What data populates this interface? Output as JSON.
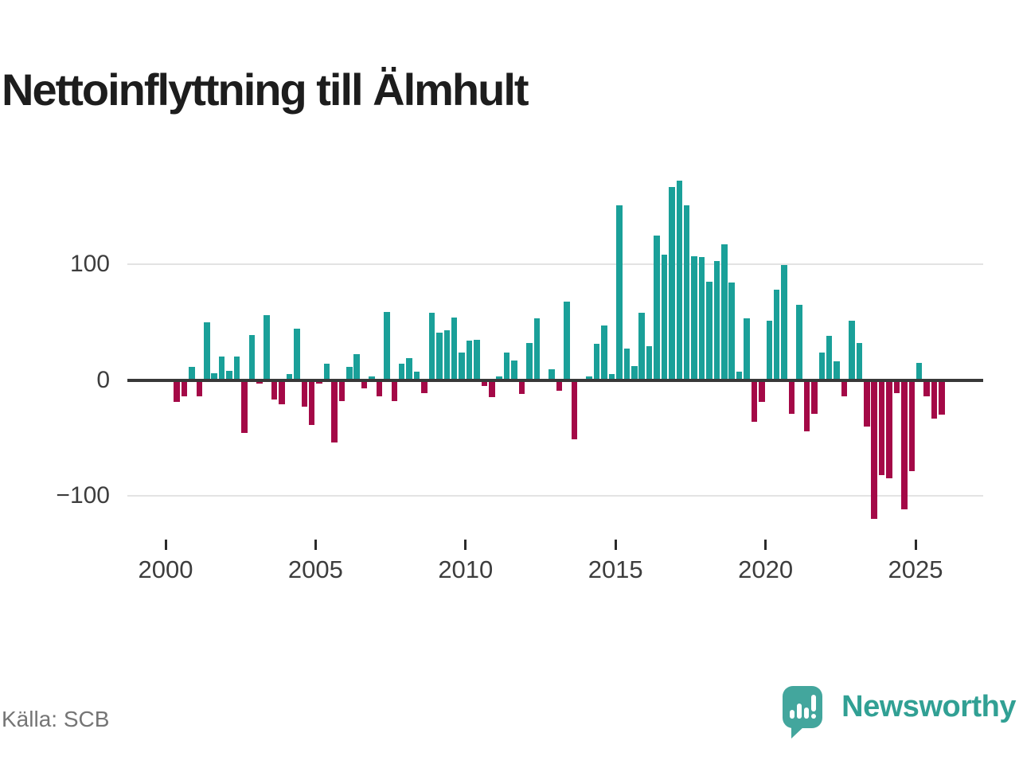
{
  "title": "Nettoinflyttning till Älmhult",
  "source_text": "Källa: SCB",
  "branding": {
    "logo_text": "Newsworthy",
    "logo_icon": "newsworthy-speech-bubble-chart-icon"
  },
  "colors": {
    "positive_bar": "#1aa099",
    "negative_bar": "#a40947",
    "zero_axis": "#383838",
    "gridline": "#e3e3e3",
    "tick_mark": "#2b2b2b",
    "tick_label": "#3d3d3d",
    "title_text": "#1d1d1d",
    "source_text": "#757575",
    "brand_teal": "#43a69d",
    "wordmark_teal": "#31a094"
  },
  "chart_data": {
    "type": "bar",
    "title": "Nettoinflyttning till Älmhult",
    "xlabel": "",
    "ylabel": "",
    "legend": "none",
    "grid": "horizontal",
    "ylim": [
      -130,
      185
    ],
    "y_ticks": [
      {
        "value": 100,
        "label": "100"
      },
      {
        "value": 0,
        "label": "0"
      },
      {
        "value": -100,
        "label": "−100"
      }
    ],
    "x_ticks": [
      {
        "year": 2000,
        "label": "2000"
      },
      {
        "year": 2005,
        "label": "2005"
      },
      {
        "year": 2010,
        "label": "2010"
      },
      {
        "year": 2015,
        "label": "2015"
      },
      {
        "year": 2020,
        "label": "2020"
      },
      {
        "year": 2025,
        "label": "2025"
      }
    ],
    "quarters": [
      "2000 Q2",
      "2000 Q3",
      "2000 Q4",
      "2001 Q1",
      "2001 Q2",
      "2001 Q3",
      "2001 Q4",
      "2002 Q1",
      "2002 Q2",
      "2002 Q3",
      "2002 Q4",
      "2003 Q1",
      "2003 Q2",
      "2003 Q3",
      "2003 Q4",
      "2004 Q1",
      "2004 Q2",
      "2004 Q3",
      "2004 Q4",
      "2005 Q1",
      "2005 Q2",
      "2005 Q3",
      "2005 Q4",
      "2006 Q1",
      "2006 Q2",
      "2006 Q3",
      "2006 Q4",
      "2007 Q1",
      "2007 Q2",
      "2007 Q3",
      "2007 Q4",
      "2008 Q1",
      "2008 Q2",
      "2008 Q3",
      "2008 Q4",
      "2009 Q1",
      "2009 Q2",
      "2009 Q3",
      "2009 Q4",
      "2010 Q1",
      "2010 Q2",
      "2010 Q3",
      "2010 Q4",
      "2011 Q1",
      "2011 Q2",
      "2011 Q3",
      "2011 Q4",
      "2012 Q1",
      "2012 Q2",
      "2012 Q3",
      "2012 Q4",
      "2013 Q1",
      "2013 Q2",
      "2013 Q3",
      "2013 Q4",
      "2014 Q1",
      "2014 Q2",
      "2014 Q3",
      "2014 Q4",
      "2015 Q1",
      "2015 Q2",
      "2015 Q3",
      "2015 Q4",
      "2016 Q1",
      "2016 Q2",
      "2016 Q3",
      "2016 Q4",
      "2017 Q1",
      "2017 Q2",
      "2017 Q3",
      "2017 Q4",
      "2018 Q1",
      "2018 Q2",
      "2018 Q3",
      "2018 Q4",
      "2019 Q1",
      "2019 Q2",
      "2019 Q3",
      "2019 Q4",
      "2020 Q1",
      "2020 Q2",
      "2020 Q3",
      "2020 Q4",
      "2021 Q1",
      "2021 Q2",
      "2021 Q3",
      "2021 Q4",
      "2022 Q1",
      "2022 Q2",
      "2022 Q3",
      "2022 Q4",
      "2023 Q1",
      "2023 Q2",
      "2023 Q3",
      "2023 Q4",
      "2024 Q1",
      "2024 Q2",
      "2024 Q3",
      "2024 Q4",
      "2025 Q1",
      "2025 Q2",
      "2025 Q3",
      "2025 Q4"
    ],
    "values": [
      -19,
      -14,
      11,
      -14,
      50,
      6,
      20,
      8,
      20,
      -46,
      39,
      -3,
      56,
      -17,
      -21,
      5,
      44,
      -23,
      -39,
      -3,
      14,
      -54,
      -18,
      11,
      22,
      -7,
      3,
      -14,
      59,
      -18,
      14,
      19,
      7,
      -11,
      58,
      41,
      43,
      54,
      24,
      34,
      35,
      -5,
      -15,
      3,
      24,
      17,
      -12,
      32,
      53,
      0,
      9,
      -9,
      68,
      -51,
      -2,
      3,
      31,
      47,
      5,
      151,
      27,
      12,
      58,
      29,
      125,
      108,
      167,
      172,
      151,
      107,
      106,
      85,
      103,
      117,
      84,
      7,
      53,
      -36,
      -19,
      51,
      78,
      99,
      -29,
      65,
      -44,
      -29,
      24,
      38,
      16,
      -14,
      51,
      32,
      -40,
      -120,
      -82,
      -85,
      -11,
      -112,
      -79,
      15,
      -14,
      -33,
      -30
    ]
  }
}
